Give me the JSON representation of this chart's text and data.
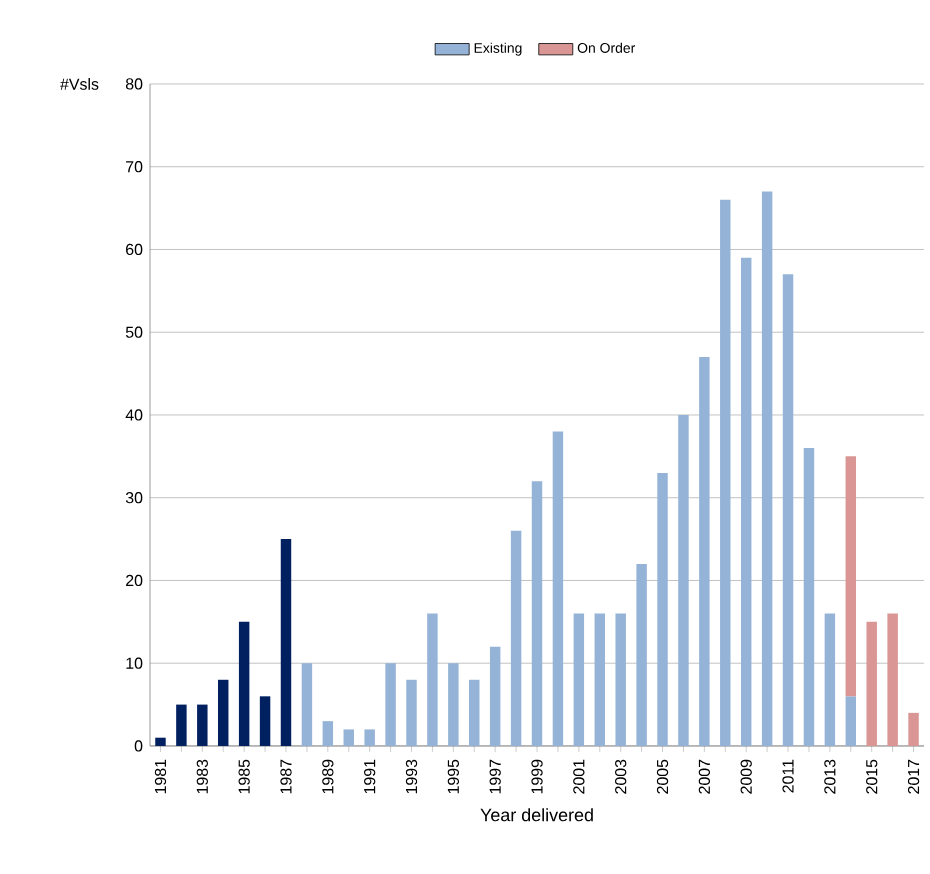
{
  "chart_data": {
    "type": "bar",
    "stacked": true,
    "xlabel": "Year delivered",
    "ylabel": "#Vsls",
    "categories": [
      "1981",
      null,
      "1983",
      null,
      "1985",
      null,
      "1987",
      null,
      "1989",
      null,
      "1991",
      null,
      "1993",
      null,
      "1995",
      null,
      "1997",
      null,
      "1999",
      null,
      "2001",
      null,
      "2003",
      null,
      "2005",
      null,
      "2007",
      null,
      "2009",
      null,
      "2011",
      null,
      "2013",
      null,
      "2015",
      null,
      "2017"
    ],
    "series": [
      {
        "color": "#002060",
        "values": [
          1,
          5,
          5,
          8,
          15,
          6,
          25,
          null,
          null,
          null,
          null,
          null,
          null,
          null,
          null,
          null,
          null,
          null,
          null,
          null,
          null,
          null,
          null,
          null,
          null,
          null,
          null,
          null,
          null,
          null,
          null,
          null,
          null,
          null,
          null,
          null,
          null
        ]
      },
      {
        "name": "Existing",
        "color": "#95b3d7",
        "values": [
          null,
          null,
          null,
          null,
          null,
          null,
          null,
          10,
          3,
          2,
          2,
          10,
          8,
          16,
          10,
          8,
          12,
          26,
          32,
          38,
          16,
          16,
          16,
          22,
          33,
          40,
          47,
          66,
          59,
          67,
          57,
          36,
          16,
          6,
          null,
          null,
          null
        ]
      },
      {
        "name": "On Order",
        "color": "#d99694",
        "values": [
          null,
          null,
          null,
          null,
          null,
          null,
          null,
          null,
          null,
          null,
          null,
          null,
          null,
          null,
          null,
          null,
          null,
          null,
          null,
          null,
          null,
          null,
          null,
          null,
          null,
          null,
          null,
          null,
          null,
          null,
          null,
          null,
          null,
          29,
          15,
          16,
          4
        ]
      }
    ],
    "ylim": [
      0,
      80
    ],
    "yticks": [
      0,
      10,
      20,
      30,
      40,
      50,
      60,
      70,
      80
    ],
    "grid": "y",
    "legend": "top"
  }
}
